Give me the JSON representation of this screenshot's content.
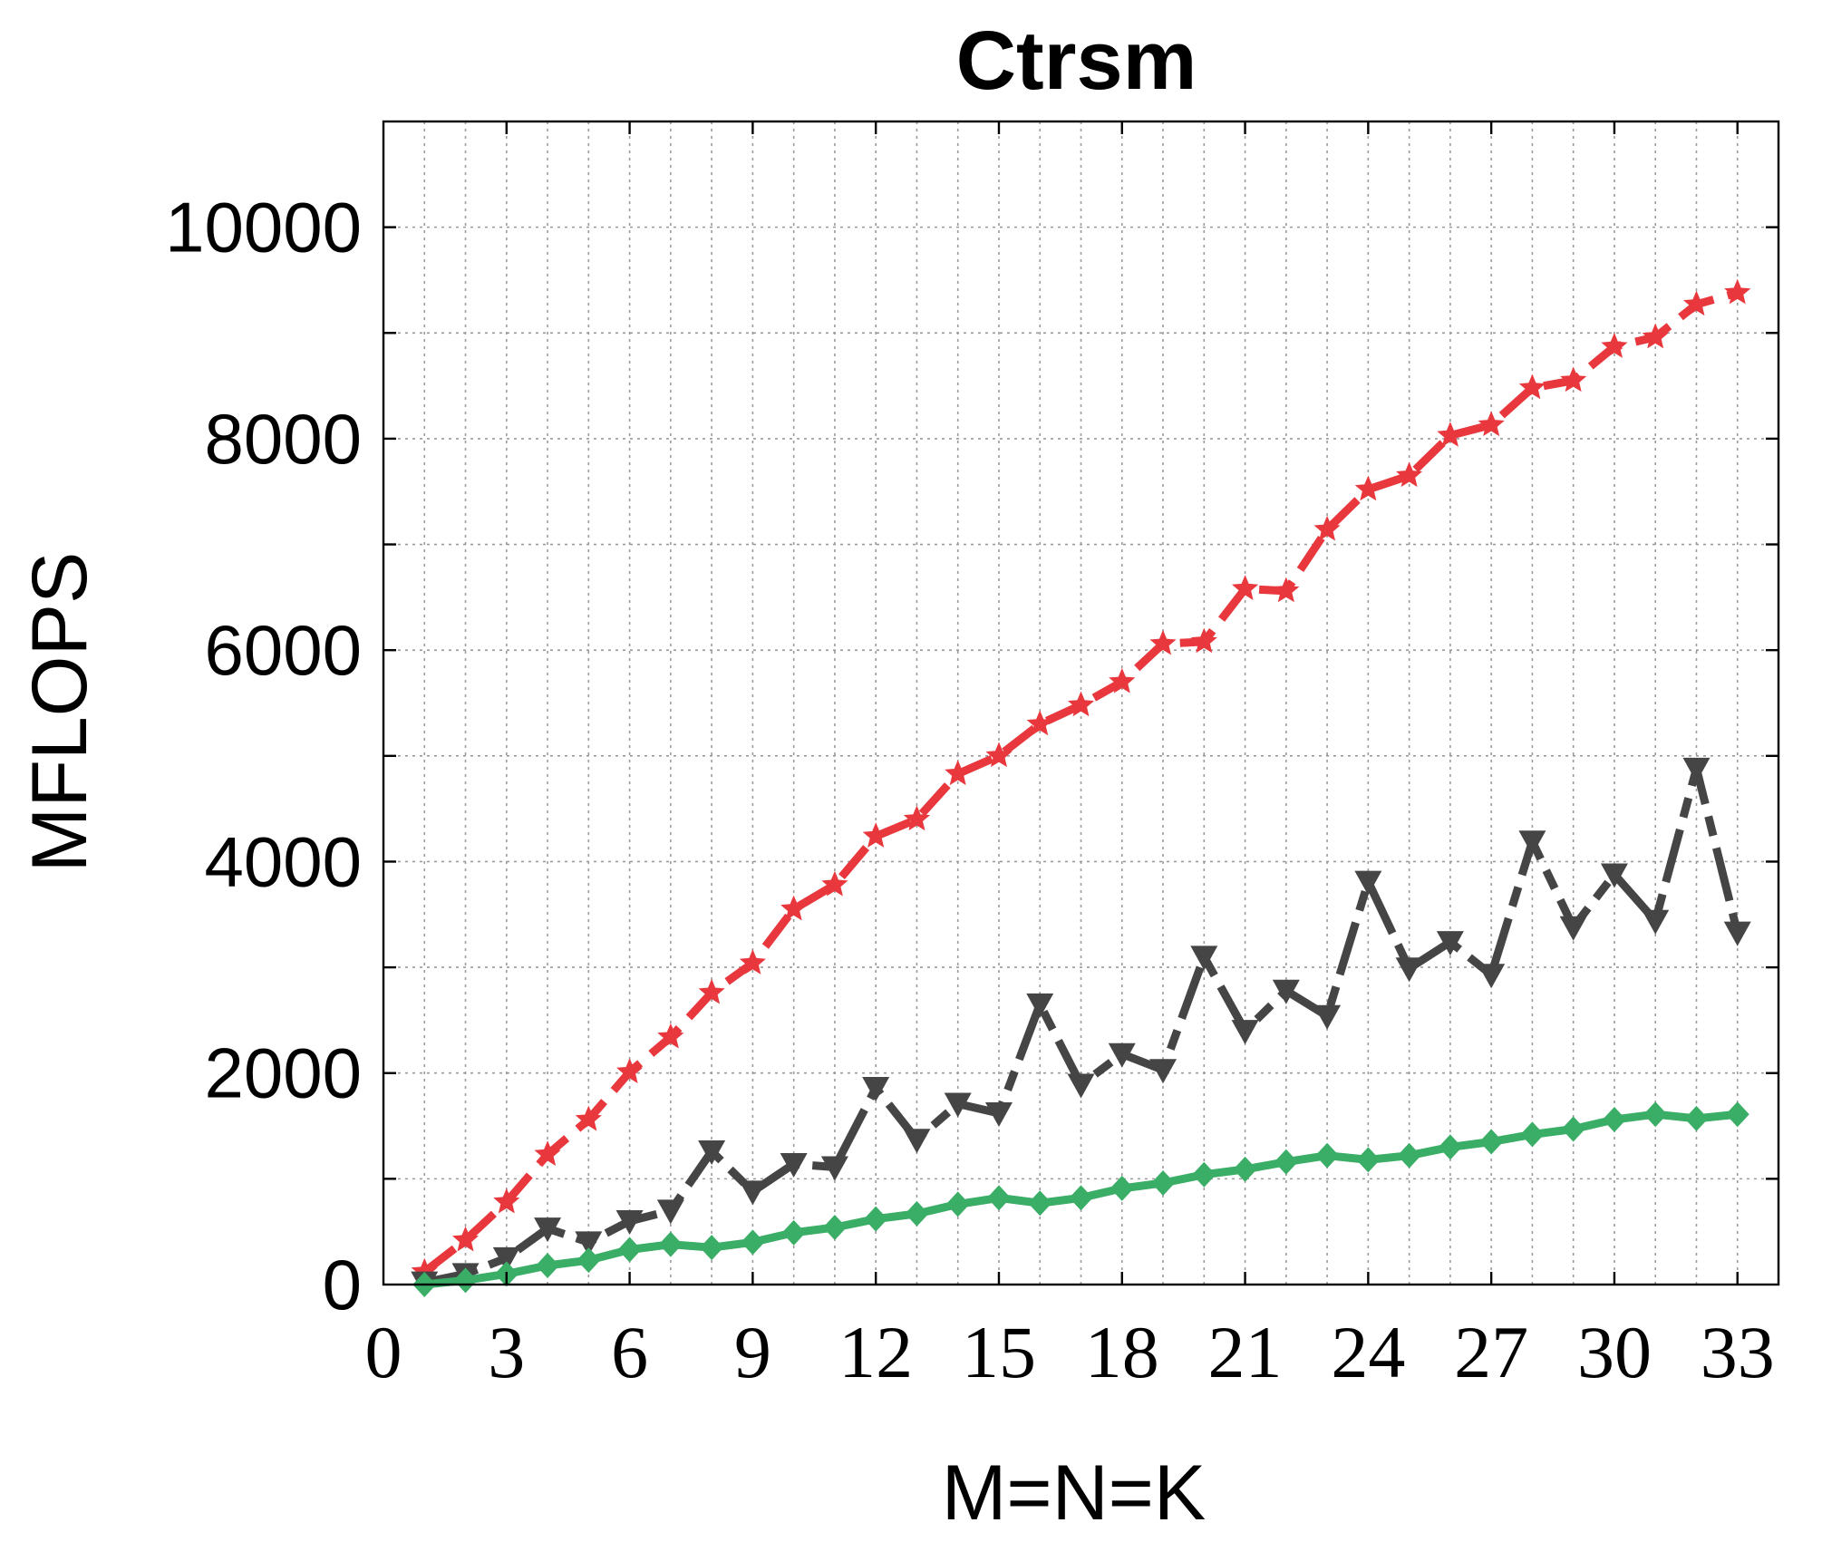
{
  "chart_data": {
    "type": "line",
    "title": "Ctrsm",
    "xlabel": "M=N=K",
    "ylabel": "MFLOPS",
    "xlim": [
      0,
      34
    ],
    "ylim": [
      0,
      11000
    ],
    "xticks": [
      0,
      3,
      6,
      9,
      12,
      15,
      18,
      21,
      24,
      27,
      30,
      33
    ],
    "yticks": [
      0,
      2000,
      4000,
      6000,
      8000,
      10000
    ],
    "grid": true,
    "x": [
      1,
      2,
      3,
      4,
      5,
      6,
      7,
      8,
      9,
      10,
      11,
      12,
      13,
      14,
      15,
      16,
      17,
      18,
      19,
      20,
      21,
      22,
      23,
      24,
      25,
      26,
      27,
      28,
      29,
      30,
      31,
      32,
      33
    ],
    "series": [
      {
        "color": "#e8383d",
        "line_style": "dashed",
        "marker": "star",
        "values": [
          120,
          420,
          780,
          1230,
          1560,
          2010,
          2340,
          2760,
          3040,
          3550,
          3780,
          4240,
          4400,
          4830,
          5000,
          5300,
          5480,
          5700,
          6060,
          6080,
          6580,
          6560,
          7140,
          7520,
          7650,
          8030,
          8130,
          8480,
          8550,
          8870,
          8960,
          9270,
          9380
        ]
      },
      {
        "color": "#454545",
        "line_style": "mixed-dash",
        "marker": "triangle-down",
        "values": [
          20,
          100,
          250,
          530,
          400,
          600,
          700,
          1260,
          880,
          1140,
          1110,
          1860,
          1370,
          1710,
          1620,
          2650,
          1890,
          2180,
          2030,
          3100,
          2400,
          2780,
          2540,
          3810,
          2990,
          3240,
          2930,
          4190,
          3380,
          3880,
          3440,
          4880,
          3330
        ]
      },
      {
        "color": "#3aad66",
        "line_style": "solid",
        "marker": "diamond",
        "values": [
          0,
          40,
          100,
          180,
          230,
          330,
          380,
          350,
          400,
          490,
          540,
          620,
          670,
          760,
          820,
          770,
          820,
          910,
          960,
          1040,
          1090,
          1160,
          1220,
          1180,
          1220,
          1300,
          1350,
          1420,
          1470,
          1560,
          1610,
          1570,
          1610
        ]
      }
    ]
  }
}
